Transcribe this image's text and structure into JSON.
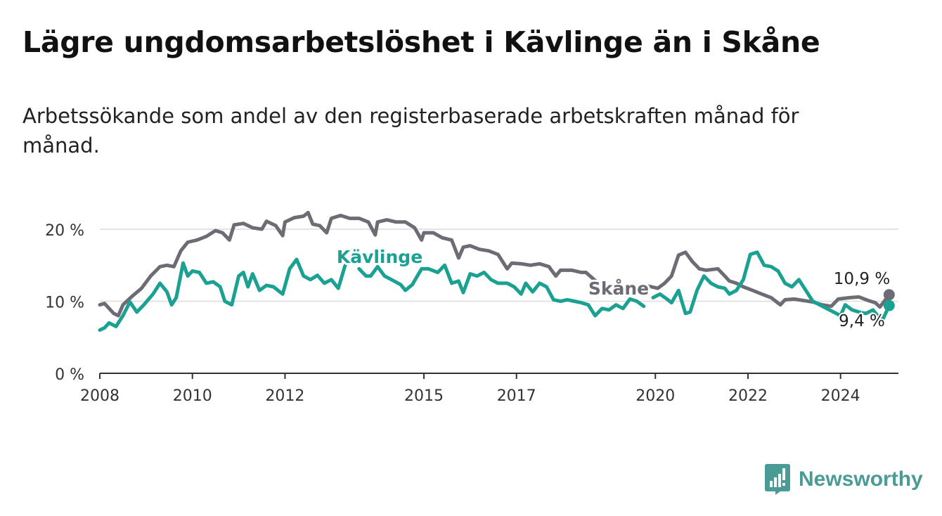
{
  "title": "Lägre ungdomsarbetslöshet i Kävlinge än i Skåne",
  "subtitle": "Arbetssökande som andel av den registerbaserade arbetskraften månad för månad.",
  "brand": {
    "name": "Newsworthy",
    "icon": "newsworthy-logo-icon",
    "color": "#4a9b96"
  },
  "chart_data": {
    "type": "line",
    "title": "Lägre ungdomsarbetslöshet i Kävlinge än i Skåne",
    "xlabel": "",
    "ylabel": "",
    "xlim": [
      2008,
      2025.25
    ],
    "ylim": [
      0,
      22
    ],
    "grid": true,
    "y_ticks": [
      0,
      10,
      20
    ],
    "y_tick_labels": [
      "0 %",
      "10 %",
      "20 %"
    ],
    "x_ticks": [
      2008,
      2010,
      2012,
      2015,
      2017,
      2020,
      2022,
      2024
    ],
    "x_tick_labels": [
      "2008",
      "2010",
      "2012",
      "2015",
      "2017",
      "2020",
      "2022",
      "2024"
    ],
    "series": [
      {
        "name": "Skåne",
        "label": "Skåne",
        "color": "#6d6b73",
        "end_label": "10,9 %",
        "points": [
          [
            2008.0,
            9.5
          ],
          [
            2008.1,
            9.7
          ],
          [
            2008.3,
            8.3
          ],
          [
            2008.4,
            8.0
          ],
          [
            2008.5,
            9.5
          ],
          [
            2008.7,
            10.7
          ],
          [
            2008.9,
            11.8
          ],
          [
            2009.1,
            13.5
          ],
          [
            2009.3,
            14.8
          ],
          [
            2009.45,
            15.0
          ],
          [
            2009.6,
            14.8
          ],
          [
            2009.75,
            17.0
          ],
          [
            2009.9,
            18.2
          ],
          [
            2010.1,
            18.5
          ],
          [
            2010.3,
            19.0
          ],
          [
            2010.5,
            19.8
          ],
          [
            2010.65,
            19.5
          ],
          [
            2010.8,
            18.5
          ],
          [
            2010.9,
            20.6
          ],
          [
            2011.1,
            20.8
          ],
          [
            2011.3,
            20.2
          ],
          [
            2011.5,
            20.0
          ],
          [
            2011.6,
            21.1
          ],
          [
            2011.8,
            20.5
          ],
          [
            2011.95,
            19.1
          ],
          [
            2012.0,
            21.0
          ],
          [
            2012.2,
            21.6
          ],
          [
            2012.4,
            21.8
          ],
          [
            2012.5,
            22.3
          ],
          [
            2012.6,
            20.7
          ],
          [
            2012.75,
            20.5
          ],
          [
            2012.9,
            19.5
          ],
          [
            2013.0,
            21.5
          ],
          [
            2013.2,
            21.9
          ],
          [
            2013.4,
            21.5
          ],
          [
            2013.6,
            21.5
          ],
          [
            2013.8,
            21.0
          ],
          [
            2013.95,
            19.2
          ],
          [
            2014.0,
            21.0
          ],
          [
            2014.2,
            21.3
          ],
          [
            2014.4,
            21.0
          ],
          [
            2014.6,
            21.0
          ],
          [
            2014.8,
            20.2
          ],
          [
            2014.95,
            18.5
          ],
          [
            2015.0,
            19.5
          ],
          [
            2015.2,
            19.5
          ],
          [
            2015.4,
            18.8
          ],
          [
            2015.6,
            18.5
          ],
          [
            2015.75,
            16.0
          ],
          [
            2015.85,
            17.5
          ],
          [
            2016.0,
            17.7
          ],
          [
            2016.2,
            17.2
          ],
          [
            2016.4,
            17.0
          ],
          [
            2016.6,
            16.5
          ],
          [
            2016.8,
            14.5
          ],
          [
            2016.9,
            15.3
          ],
          [
            2017.1,
            15.2
          ],
          [
            2017.3,
            15.0
          ],
          [
            2017.5,
            15.2
          ],
          [
            2017.7,
            14.8
          ],
          [
            2017.85,
            13.5
          ],
          [
            2017.95,
            14.3
          ],
          [
            2018.2,
            14.3
          ],
          [
            2018.4,
            14.0
          ],
          [
            2018.5,
            14.0
          ],
          [
            2018.75,
            12.6
          ]
        ],
        "points_b": [
          [
            2021.35,
            14.5
          ],
          [
            2021.5,
            13.5
          ],
          [
            2021.6,
            12.8
          ],
          [
            2021.75,
            12.5
          ],
          [
            2021.9,
            12.0
          ],
          [
            2022.1,
            11.5
          ],
          [
            2022.3,
            11.0
          ],
          [
            2022.5,
            10.5
          ],
          [
            2022.7,
            9.5
          ],
          [
            2022.8,
            10.2
          ],
          [
            2023.0,
            10.3
          ],
          [
            2023.2,
            10.1
          ],
          [
            2023.4,
            9.9
          ],
          [
            2023.6,
            9.5
          ],
          [
            2023.8,
            9.3
          ],
          [
            2023.95,
            10.3
          ],
          [
            2024.2,
            10.5
          ],
          [
            2024.4,
            10.6
          ],
          [
            2024.6,
            10.1
          ],
          [
            2024.75,
            9.8
          ],
          [
            2024.85,
            9.2
          ],
          [
            2025.05,
            10.9
          ]
        ]
      },
      {
        "name": "Kävlinge",
        "label": "Kävlinge",
        "color": "#1aa192",
        "end_label": "9,4 %",
        "points": [
          [
            2008.0,
            6.0
          ],
          [
            2008.1,
            6.3
          ],
          [
            2008.2,
            7.0
          ],
          [
            2008.35,
            6.5
          ],
          [
            2008.5,
            8.0
          ],
          [
            2008.65,
            9.9
          ],
          [
            2008.8,
            8.5
          ],
          [
            2008.95,
            9.5
          ],
          [
            2009.15,
            11.0
          ],
          [
            2009.3,
            12.5
          ],
          [
            2009.45,
            11.3
          ],
          [
            2009.55,
            9.5
          ],
          [
            2009.65,
            10.5
          ],
          [
            2009.8,
            15.3
          ],
          [
            2009.9,
            13.5
          ],
          [
            2010.0,
            14.2
          ],
          [
            2010.15,
            14.0
          ],
          [
            2010.3,
            12.5
          ],
          [
            2010.45,
            12.7
          ],
          [
            2010.6,
            12.0
          ],
          [
            2010.7,
            10.0
          ],
          [
            2010.85,
            9.5
          ],
          [
            2011.0,
            13.5
          ],
          [
            2011.1,
            14.0
          ],
          [
            2011.2,
            12.0
          ],
          [
            2011.3,
            13.8
          ],
          [
            2011.45,
            11.5
          ],
          [
            2011.6,
            12.2
          ],
          [
            2011.75,
            12.0
          ],
          [
            2011.95,
            11.0
          ],
          [
            2012.1,
            14.5
          ],
          [
            2012.25,
            15.8
          ],
          [
            2012.4,
            13.5
          ],
          [
            2012.55,
            13.0
          ],
          [
            2012.7,
            13.6
          ],
          [
            2012.85,
            12.5
          ],
          [
            2013.0,
            13.0
          ],
          [
            2013.15,
            11.8
          ],
          [
            2013.3,
            15.0
          ]
        ],
        "points_b": [
          [
            2013.6,
            14.5
          ],
          [
            2013.75,
            13.5
          ],
          [
            2013.85,
            13.5
          ],
          [
            2014.0,
            14.8
          ],
          [
            2014.15,
            13.5
          ],
          [
            2014.3,
            13.0
          ],
          [
            2014.5,
            12.3
          ],
          [
            2014.6,
            11.5
          ],
          [
            2014.75,
            12.3
          ],
          [
            2014.95,
            14.5
          ],
          [
            2015.1,
            14.5
          ],
          [
            2015.3,
            14.0
          ],
          [
            2015.45,
            15.0
          ],
          [
            2015.6,
            12.5
          ],
          [
            2015.75,
            12.8
          ],
          [
            2015.85,
            11.2
          ],
          [
            2016.0,
            13.8
          ],
          [
            2016.15,
            13.5
          ],
          [
            2016.3,
            14.0
          ],
          [
            2016.45,
            13.0
          ],
          [
            2016.6,
            12.5
          ],
          [
            2016.8,
            12.5
          ],
          [
            2016.95,
            12.0
          ],
          [
            2017.1,
            11.0
          ],
          [
            2017.2,
            12.5
          ],
          [
            2017.35,
            11.3
          ],
          [
            2017.5,
            12.5
          ],
          [
            2017.65,
            12.0
          ],
          [
            2017.8,
            10.2
          ],
          [
            2017.95,
            10.0
          ],
          [
            2018.1,
            10.2
          ],
          [
            2018.25,
            10.0
          ],
          [
            2018.4,
            9.8
          ],
          [
            2018.55,
            9.5
          ],
          [
            2018.7,
            8.0
          ],
          [
            2018.85,
            9.0
          ],
          [
            2019.0,
            8.8
          ],
          [
            2019.15,
            9.5
          ],
          [
            2019.3,
            9.0
          ],
          [
            2019.45,
            10.3
          ],
          [
            2019.6,
            10.0
          ],
          [
            2019.75,
            9.3
          ]
        ],
        "points_c": [
          [
            2019.95,
            10.5
          ],
          [
            2020.1,
            11.0
          ],
          [
            2020.25,
            10.3
          ],
          [
            2020.35,
            9.8
          ],
          [
            2020.5,
            11.5
          ],
          [
            2020.65,
            8.3
          ],
          [
            2020.75,
            8.5
          ],
          [
            2020.9,
            11.5
          ],
          [
            2021.05,
            13.5
          ],
          [
            2021.2,
            12.5
          ],
          [
            2021.35,
            12.0
          ],
          [
            2021.5,
            11.8
          ],
          [
            2021.6,
            11.0
          ],
          [
            2021.75,
            11.5
          ],
          [
            2021.9,
            13.0
          ],
          [
            2022.05,
            16.5
          ],
          [
            2022.2,
            16.8
          ],
          [
            2022.35,
            15.0
          ],
          [
            2022.5,
            14.8
          ],
          [
            2022.65,
            14.2
          ],
          [
            2022.8,
            12.5
          ],
          [
            2022.95,
            12.0
          ],
          [
            2023.1,
            13.0
          ],
          [
            2023.25,
            11.5
          ],
          [
            2023.4,
            10.0
          ],
          [
            2023.55,
            9.5
          ],
          [
            2023.7,
            9.0
          ],
          [
            2023.85,
            8.5
          ],
          [
            2024.0,
            8.0
          ],
          [
            2024.1,
            9.5
          ],
          [
            2024.25,
            8.8
          ],
          [
            2024.4,
            8.5
          ],
          [
            2024.55,
            8.3
          ],
          [
            2024.7,
            8.8
          ],
          [
            2024.8,
            8.0
          ],
          [
            2024.9,
            7.3
          ],
          [
            2025.05,
            9.4
          ]
        ]
      }
    ]
  }
}
